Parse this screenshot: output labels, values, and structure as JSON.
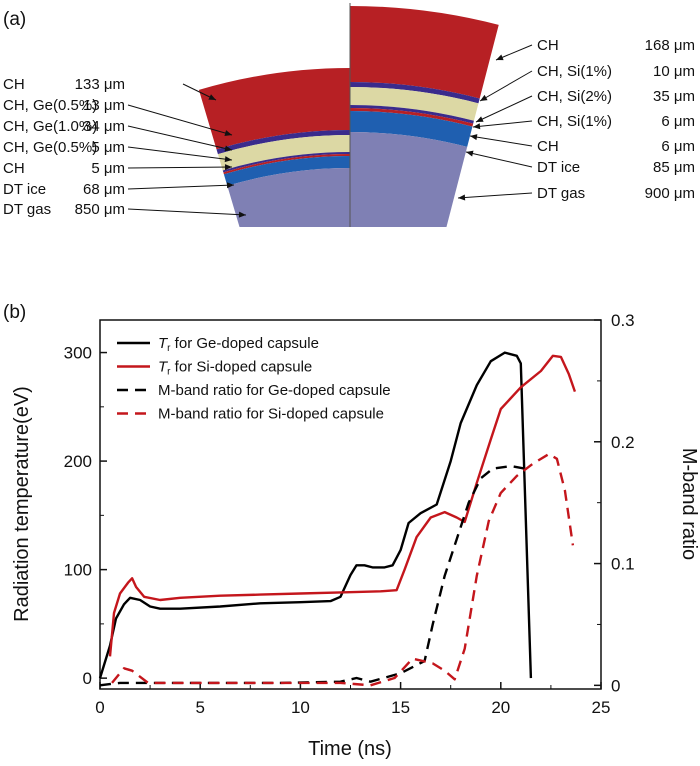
{
  "panel_a": {
    "label": "(a)",
    "left_layers": [
      {
        "name": "CH",
        "thickness": "133 μm",
        "color": "#b72024"
      },
      {
        "name": "CH, Ge(0.5%)",
        "thickness": "13 μm",
        "color": "#3a2b8c"
      },
      {
        "name": "CH, Ge(1.0%)",
        "thickness": "34 μm",
        "color": "#dcd8a4"
      },
      {
        "name": "CH, Ge(0.5%)",
        "thickness": "5 μm",
        "color": "#3a2b8c"
      },
      {
        "name": "CH",
        "thickness": "5 μm",
        "color": "#b72024"
      },
      {
        "name": "DT ice",
        "thickness": "68 μm",
        "color": "#1f5fb0"
      },
      {
        "name": "DT gas",
        "thickness": "850 μm",
        "color": "#7f80b4"
      }
    ],
    "right_layers": [
      {
        "name": "CH",
        "thickness": "168 μm",
        "color": "#b72024"
      },
      {
        "name": "CH, Si(1%)",
        "thickness": "10 μm",
        "color": "#3a2b8c"
      },
      {
        "name": "CH, Si(2%)",
        "thickness": "35 μm",
        "color": "#dcd8a4"
      },
      {
        "name": "CH, Si(1%)",
        "thickness": "6 μm",
        "color": "#3a2b8c"
      },
      {
        "name": "CH",
        "thickness": "6 μm",
        "color": "#b72024"
      },
      {
        "name": "DT ice",
        "thickness": "85 μm",
        "color": "#1f5fb0"
      },
      {
        "name": "DT gas",
        "thickness": "900 μm",
        "color": "#7f80b4"
      }
    ]
  },
  "chart_data": {
    "type": "line",
    "panel_label": "(b)",
    "xlabel": "Time (ns)",
    "ylabel": "Radiation temperature(eV)",
    "y2label": "M-band ratio",
    "xlim": [
      0,
      25
    ],
    "ylim": [
      -10,
      330
    ],
    "y2lim": [
      -0.003,
      0.3
    ],
    "x_ticks": [
      0,
      5,
      10,
      15,
      20,
      25
    ],
    "y_ticks": [
      0,
      100,
      200,
      300
    ],
    "y2_ticks": [
      0,
      0.1,
      0.2,
      0.3
    ],
    "legend_position": "top-left",
    "series": [
      {
        "name": "T_r for Ge-doped capsule",
        "name_symbol": "T",
        "name_sub": "r",
        "name_rest": " for Ge-doped capsule",
        "axis": "left",
        "color": "#000000",
        "dash": "solid",
        "points": [
          [
            0,
            0
          ],
          [
            0.5,
            30
          ],
          [
            0.8,
            55
          ],
          [
            1.2,
            68
          ],
          [
            1.5,
            74
          ],
          [
            2,
            72
          ],
          [
            2.5,
            66
          ],
          [
            3,
            64
          ],
          [
            4,
            64
          ],
          [
            6,
            66
          ],
          [
            8,
            69
          ],
          [
            10,
            70
          ],
          [
            11.5,
            71
          ],
          [
            12,
            75
          ],
          [
            12.5,
            95
          ],
          [
            12.8,
            104
          ],
          [
            13.2,
            104
          ],
          [
            13.6,
            102
          ],
          [
            14.2,
            102
          ],
          [
            14.6,
            104
          ],
          [
            15,
            118
          ],
          [
            15.4,
            143
          ],
          [
            16,
            152
          ],
          [
            16.8,
            160
          ],
          [
            17.5,
            200
          ],
          [
            18,
            235
          ],
          [
            18.8,
            270
          ],
          [
            19.5,
            292
          ],
          [
            20.2,
            300
          ],
          [
            20.8,
            297
          ],
          [
            21.0,
            290
          ],
          [
            21.5,
            0
          ]
        ]
      },
      {
        "name": "T_r for Si-doped capsule",
        "name_symbol": "T",
        "name_sub": "r",
        "name_rest": " for Si-doped capsule",
        "axis": "left",
        "color": "#c4161c",
        "dash": "solid",
        "points": [
          [
            0.5,
            20
          ],
          [
            0.7,
            60
          ],
          [
            1.0,
            78
          ],
          [
            1.4,
            88
          ],
          [
            1.6,
            92
          ],
          [
            1.8,
            84
          ],
          [
            2.2,
            75
          ],
          [
            3,
            72
          ],
          [
            4,
            74
          ],
          [
            6,
            76
          ],
          [
            8,
            77
          ],
          [
            10,
            78
          ],
          [
            12,
            79
          ],
          [
            14,
            80
          ],
          [
            14.8,
            81
          ],
          [
            15.2,
            100
          ],
          [
            15.8,
            130
          ],
          [
            16.5,
            148
          ],
          [
            17.2,
            153
          ],
          [
            17.8,
            148
          ],
          [
            18.2,
            144
          ],
          [
            18.8,
            180
          ],
          [
            19.5,
            220
          ],
          [
            20,
            248
          ],
          [
            21,
            268
          ],
          [
            22,
            283
          ],
          [
            22.6,
            297
          ],
          [
            23.0,
            296
          ],
          [
            23.4,
            280
          ],
          [
            23.7,
            264
          ]
        ]
      },
      {
        "name": "M-band ratio for Ge-doped capsule",
        "axis": "right",
        "color": "#000000",
        "dash": "dashed",
        "points": [
          [
            0,
            0
          ],
          [
            1,
            0.002
          ],
          [
            3,
            0.002
          ],
          [
            6,
            0.002
          ],
          [
            9,
            0.002
          ],
          [
            12,
            0.003
          ],
          [
            12.8,
            0.006
          ],
          [
            13.5,
            0.003
          ],
          [
            15,
            0.01
          ],
          [
            16.2,
            0.02
          ],
          [
            16.6,
            0.05
          ],
          [
            17.2,
            0.09
          ],
          [
            17.8,
            0.12
          ],
          [
            18.4,
            0.15
          ],
          [
            19,
            0.17
          ],
          [
            19.6,
            0.178
          ],
          [
            20.5,
            0.18
          ],
          [
            21.2,
            0.178
          ]
        ]
      },
      {
        "name": "M-band ratio for Si-doped capsule",
        "axis": "right",
        "color": "#c4161c",
        "dash": "dashed",
        "points": [
          [
            0.6,
            0.002
          ],
          [
            1.2,
            0.014
          ],
          [
            1.6,
            0.012
          ],
          [
            2.4,
            0.002
          ],
          [
            5,
            0.002
          ],
          [
            9,
            0.002
          ],
          [
            12,
            0.002
          ],
          [
            13.5,
            0.0
          ],
          [
            14.7,
            0.006
          ],
          [
            15.6,
            0.022
          ],
          [
            16.6,
            0.018
          ],
          [
            17.2,
            0.012
          ],
          [
            17.7,
            0.005
          ],
          [
            18.2,
            0.03
          ],
          [
            18.8,
            0.09
          ],
          [
            19.4,
            0.135
          ],
          [
            20,
            0.158
          ],
          [
            20.8,
            0.172
          ],
          [
            21.6,
            0.182
          ],
          [
            22.4,
            0.19
          ],
          [
            22.8,
            0.186
          ],
          [
            23.2,
            0.16
          ],
          [
            23.6,
            0.115
          ]
        ]
      }
    ]
  }
}
